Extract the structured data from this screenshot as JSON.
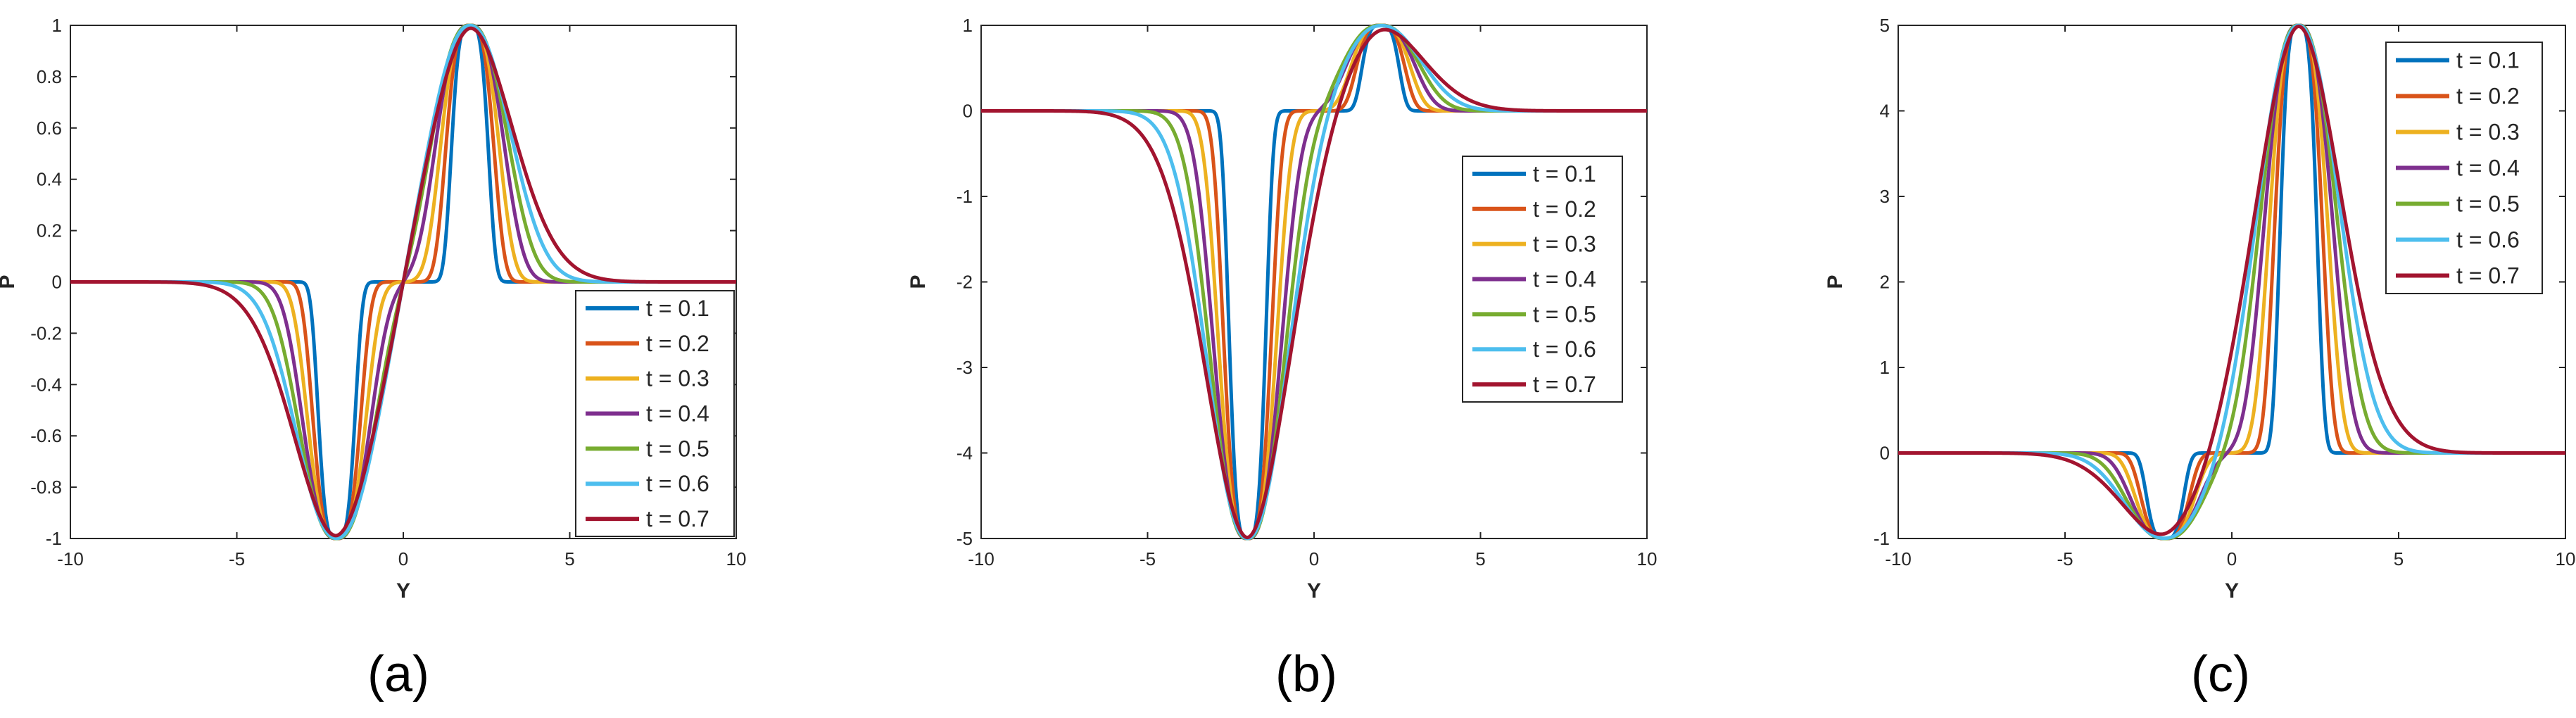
{
  "figure": {
    "captions": [
      "(a)",
      "(b)",
      "(c)"
    ]
  },
  "chart_data": [
    {
      "type": "line",
      "panel": "(a)",
      "title": "",
      "xlabel": "Y",
      "ylabel": "P",
      "xlim": [
        -10,
        10
      ],
      "ylim": [
        -1,
        1
      ],
      "xticks": [
        -10,
        -5,
        0,
        5,
        10
      ],
      "yticks": [
        -1,
        -0.8,
        -0.6,
        -0.4,
        -0.2,
        0,
        0.2,
        0.4,
        0.6,
        0.8,
        1
      ],
      "grid": false,
      "legend_position": "bottom-right",
      "model": {
        "amplitude_neg": 1,
        "amplitude_pos": 1,
        "center_neg": -2,
        "center_pos": 2
      },
      "series": [
        {
          "name": "t = 0.1",
          "t": 0.1,
          "color": "#0072BD"
        },
        {
          "name": "t = 0.2",
          "t": 0.2,
          "color": "#D95319"
        },
        {
          "name": "t = 0.3",
          "t": 0.3,
          "color": "#EDB120"
        },
        {
          "name": "t = 0.4",
          "t": 0.4,
          "color": "#7E2F8E"
        },
        {
          "name": "t = 0.5",
          "t": 0.5,
          "color": "#77AC30"
        },
        {
          "name": "t = 0.6",
          "t": 0.6,
          "color": "#4DBEEE"
        },
        {
          "name": "t = 0.7",
          "t": 0.7,
          "color": "#A2142F"
        }
      ]
    },
    {
      "type": "line",
      "panel": "(b)",
      "title": "",
      "xlabel": "Y",
      "ylabel": "P",
      "xlim": [
        -10,
        10
      ],
      "ylim": [
        -5,
        1
      ],
      "xticks": [
        -10,
        -5,
        0,
        5,
        10
      ],
      "yticks": [
        -5,
        -4,
        -3,
        -2,
        -1,
        0,
        1
      ],
      "grid": false,
      "legend_position": "middle-right",
      "model": {
        "amplitude_neg": 5,
        "amplitude_pos": 1,
        "center_neg": -2,
        "center_pos": 2
      },
      "series": [
        {
          "name": "t = 0.1",
          "t": 0.1,
          "color": "#0072BD"
        },
        {
          "name": "t = 0.2",
          "t": 0.2,
          "color": "#D95319"
        },
        {
          "name": "t = 0.3",
          "t": 0.3,
          "color": "#EDB120"
        },
        {
          "name": "t = 0.4",
          "t": 0.4,
          "color": "#7E2F8E"
        },
        {
          "name": "t = 0.5",
          "t": 0.5,
          "color": "#77AC30"
        },
        {
          "name": "t = 0.6",
          "t": 0.6,
          "color": "#4DBEEE"
        },
        {
          "name": "t = 0.7",
          "t": 0.7,
          "color": "#A2142F"
        }
      ]
    },
    {
      "type": "line",
      "panel": "(c)",
      "title": "",
      "xlabel": "Y",
      "ylabel": "P",
      "xlim": [
        -10,
        10
      ],
      "ylim": [
        -1,
        5
      ],
      "xticks": [
        -10,
        -5,
        0,
        5,
        10
      ],
      "yticks": [
        -1,
        0,
        1,
        2,
        3,
        4,
        5
      ],
      "grid": false,
      "legend_position": "top-right",
      "model": {
        "amplitude_neg": 1,
        "amplitude_pos": 5,
        "center_neg": -2,
        "center_pos": 2
      },
      "series": [
        {
          "name": "t = 0.1",
          "t": 0.1,
          "color": "#0072BD"
        },
        {
          "name": "t = 0.2",
          "t": 0.2,
          "color": "#D95319"
        },
        {
          "name": "t = 0.3",
          "t": 0.3,
          "color": "#EDB120"
        },
        {
          "name": "t = 0.4",
          "t": 0.4,
          "color": "#7E2F8E"
        },
        {
          "name": "t = 0.5",
          "t": 0.5,
          "color": "#77AC30"
        },
        {
          "name": "t = 0.6",
          "t": 0.6,
          "color": "#4DBEEE"
        },
        {
          "name": "t = 0.7",
          "t": 0.7,
          "color": "#A2142F"
        }
      ]
    }
  ]
}
